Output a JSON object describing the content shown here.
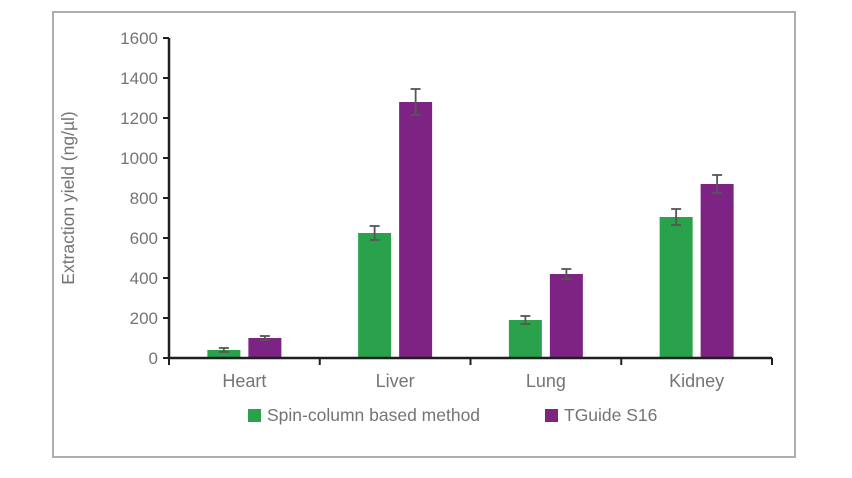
{
  "chart_data": {
    "type": "bar",
    "title": "",
    "ylabel": "Extraction yield (ng/µl)",
    "xlabel": "",
    "categories": [
      "Heart",
      "Liver",
      "Lung",
      "Kidney"
    ],
    "series": [
      {
        "name": "Spin-column based method",
        "color": "#2aa24c",
        "values": [
          40,
          625,
          190,
          705
        ],
        "errors": [
          10,
          35,
          20,
          40
        ]
      },
      {
        "name": "TGuide S16",
        "color": "#7c2383",
        "values": [
          100,
          1280,
          420,
          870
        ],
        "errors": [
          10,
          65,
          25,
          45
        ]
      }
    ],
    "ylim": [
      0,
      1600
    ],
    "yticks": [
      0,
      200,
      400,
      600,
      800,
      1000,
      1200,
      1400,
      1600
    ],
    "grid": false,
    "legend_position": "bottom"
  },
  "colors": {
    "axis": "#1f1f1f",
    "text": "#747474",
    "error_bar": "#565656",
    "frame_border": "#aeaeae",
    "background": "#ffffff"
  }
}
